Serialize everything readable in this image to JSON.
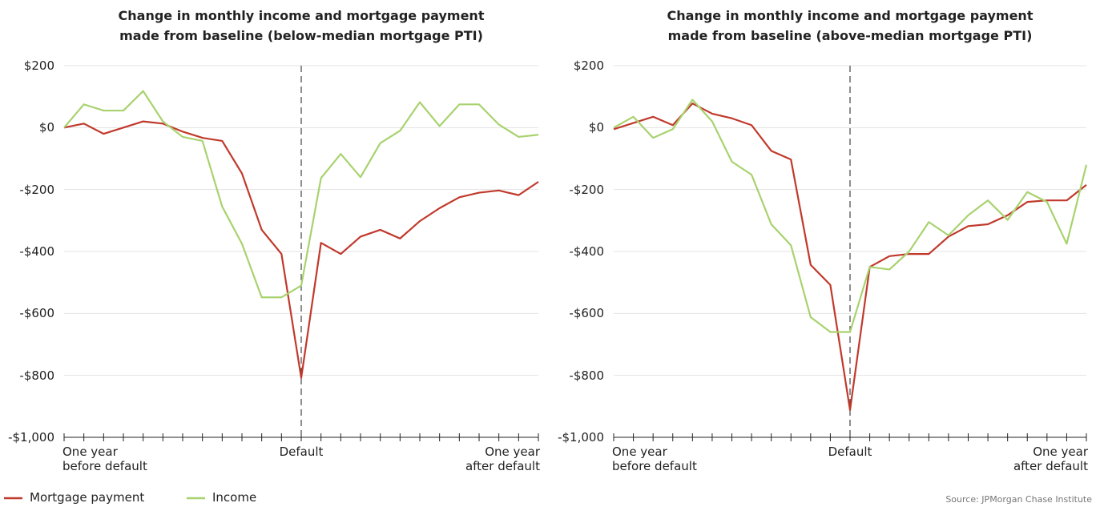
{
  "chart_data": [
    {
      "type": "line",
      "title": "Change in monthly income and mortgage payment\nmade from baseline (below-median mortgage PTI)",
      "categories": [
        "One year\nbefore default",
        null,
        null,
        null,
        null,
        null,
        null,
        null,
        null,
        null,
        null,
        null,
        "Default",
        null,
        null,
        null,
        null,
        null,
        null,
        null,
        null,
        null,
        null,
        null,
        "One year\nafter default"
      ],
      "series": [
        {
          "name": "Mortgage payment",
          "color": "#c0392b",
          "values": [
            0,
            13,
            -20,
            0,
            20,
            13,
            -13,
            -33,
            -43,
            -148,
            -330,
            -408,
            -808,
            -372,
            -408,
            -352,
            -330,
            -358,
            -302,
            -260,
            -225,
            -210,
            -203,
            -218,
            -175
          ]
        },
        {
          "name": "Income",
          "color": "#a8d26e",
          "values": [
            0,
            75,
            55,
            55,
            118,
            20,
            -30,
            -43,
            -255,
            -375,
            -548,
            -548,
            -510,
            -163,
            -85,
            -160,
            -50,
            -10,
            82,
            5,
            75,
            75,
            10,
            -30,
            -23
          ]
        }
      ],
      "ylim": [
        -1000,
        200
      ],
      "yticks": [
        {
          "value": -1000,
          "label": "-$1,000"
        },
        {
          "value": -800,
          "label": "-$800"
        },
        {
          "value": -600,
          "label": "-$600"
        },
        {
          "value": -400,
          "label": "-$400"
        },
        {
          "value": -200,
          "label": "-$200"
        },
        {
          "value": 0,
          "label": "$0"
        },
        {
          "value": 200,
          "label": "$200"
        }
      ],
      "grid": true
    },
    {
      "type": "line",
      "title": "Change in monthly income and mortgage payment\nmade from baseline (above-median mortgage PTI)",
      "categories": [
        "One year\nbefore default",
        null,
        null,
        null,
        null,
        null,
        null,
        null,
        null,
        null,
        null,
        null,
        "Default",
        null,
        null,
        null,
        null,
        null,
        null,
        null,
        null,
        null,
        null,
        null,
        "One year\nafter default"
      ],
      "series": [
        {
          "color": "#c0392b",
          "values": [
            -5,
            15,
            35,
            8,
            78,
            45,
            30,
            8,
            -75,
            -103,
            -443,
            -508,
            -912,
            -450,
            -415,
            -408,
            -408,
            -352,
            -318,
            -312,
            -283,
            -240,
            -235,
            -235,
            -185
          ]
        },
        {
          "color": "#a8d26e",
          "values": [
            0,
            35,
            -33,
            -5,
            90,
            20,
            -110,
            -152,
            -312,
            -380,
            -612,
            -660,
            -660,
            -450,
            -458,
            -400,
            -305,
            -348,
            -283,
            -235,
            -298,
            -208,
            -240,
            -375,
            -120
          ]
        }
      ],
      "ylim": [
        -1000,
        200
      ],
      "yticks": [
        {
          "value": -1000,
          "label": "-$1,000"
        },
        {
          "value": -800,
          "label": "-$800"
        },
        {
          "value": -600,
          "label": "-$600"
        },
        {
          "value": -400,
          "label": "-$400"
        },
        {
          "value": -200,
          "label": "-$200"
        },
        {
          "value": 0,
          "label": "$0"
        },
        {
          "value": 200,
          "label": "$200"
        }
      ],
      "grid": true
    }
  ],
  "source": "Source: JPMorgan Chase Institute"
}
